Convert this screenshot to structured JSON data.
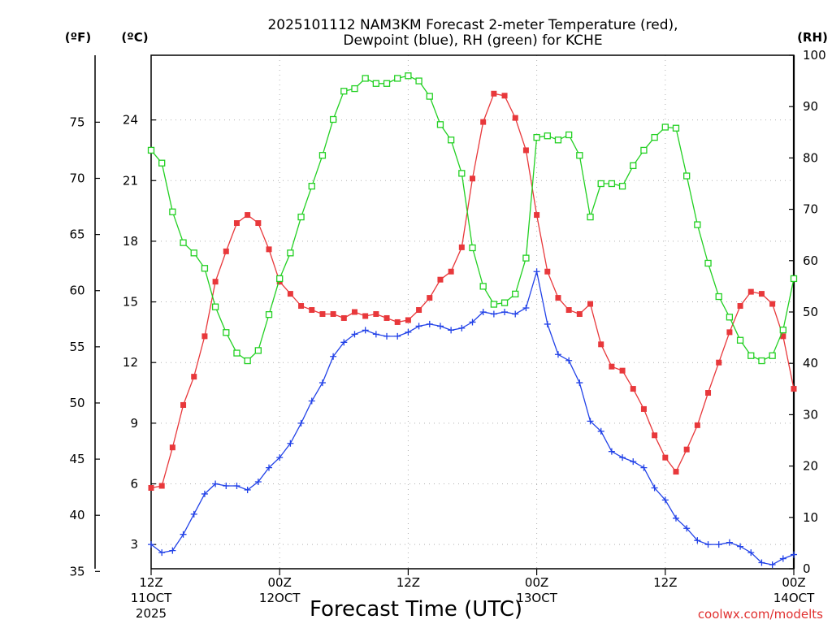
{
  "chart_data": {
    "type": "line",
    "title_line1": "2025101112 NAM3KM Forecast 2-meter Temperature (red),",
    "title_line2": "Dewpoint (blue), RH (green) for KCHE",
    "xlabel": "Forecast Time (UTC)",
    "credit": "coolwx.com/modelts",
    "units": {
      "fahrenheit": "(ºF)",
      "celsius": "(ºC)",
      "rh": "(RH)"
    },
    "x_range_hours": [
      0,
      60
    ],
    "celsius_range": [
      1.8,
      27.2
    ],
    "rh_range": [
      0,
      100
    ],
    "x_ticks": [
      {
        "hour": 0,
        "line1": "12Z",
        "line2": "11OCT",
        "line3": "2025"
      },
      {
        "hour": 12,
        "line1": "00Z",
        "line2": "12OCT",
        "line3": ""
      },
      {
        "hour": 24,
        "line1": "12Z",
        "line2": "",
        "line3": ""
      },
      {
        "hour": 36,
        "line1": "00Z",
        "line2": "13OCT",
        "line3": ""
      },
      {
        "hour": 48,
        "line1": "12Z",
        "line2": "",
        "line3": ""
      },
      {
        "hour": 60,
        "line1": "00Z",
        "line2": "14OCT",
        "line3": ""
      }
    ],
    "celsius_ticks": [
      3,
      6,
      9,
      12,
      15,
      18,
      21,
      24
    ],
    "fahrenheit_ticks": [
      35,
      40,
      45,
      50,
      55,
      60,
      65,
      70,
      75
    ],
    "rh_ticks": [
      0,
      10,
      20,
      30,
      40,
      50,
      60,
      70,
      80,
      90,
      100
    ],
    "colors": {
      "temperature": "#e8383b",
      "dewpoint": "#2242e8",
      "rh": "#22d022"
    },
    "series": [
      {
        "name": "Temperature (°C)",
        "axis": "celsius",
        "marker": "square",
        "values": [
          5.8,
          5.9,
          7.8,
          9.9,
          11.3,
          13.3,
          16.0,
          17.5,
          18.9,
          19.3,
          18.9,
          17.6,
          16.0,
          15.4,
          14.8,
          14.6,
          14.4,
          14.4,
          14.2,
          14.5,
          14.3,
          14.4,
          14.2,
          14.0,
          14.1,
          14.6,
          15.2,
          16.1,
          16.5,
          17.7,
          21.1,
          23.9,
          25.3,
          25.2,
          24.1,
          22.5,
          19.3,
          16.5,
          15.2,
          14.6,
          14.4,
          14.9,
          12.9,
          11.8,
          11.6,
          10.7,
          9.7,
          8.4,
          7.3,
          6.6,
          7.7,
          8.9,
          10.5,
          12.0,
          13.5,
          14.8,
          15.5,
          15.4,
          14.9,
          13.3,
          10.7
        ]
      },
      {
        "name": "Dewpoint (°C)",
        "axis": "celsius",
        "marker": "plus",
        "values": [
          3.0,
          2.6,
          2.7,
          3.5,
          4.5,
          5.5,
          6.0,
          5.9,
          5.9,
          5.7,
          6.1,
          6.8,
          7.3,
          8.0,
          9.0,
          10.1,
          11.0,
          12.3,
          13.0,
          13.4,
          13.6,
          13.4,
          13.3,
          13.3,
          13.5,
          13.8,
          13.9,
          13.8,
          13.6,
          13.7,
          14.0,
          14.5,
          14.4,
          14.5,
          14.4,
          14.7,
          16.5,
          13.9,
          12.4,
          12.1,
          11.0,
          9.1,
          8.6,
          7.6,
          7.3,
          7.1,
          6.8,
          5.8,
          5.2,
          4.3,
          3.8,
          3.2,
          3.0,
          3.0,
          3.1,
          2.9,
          2.6,
          2.1,
          2.0,
          2.3,
          2.5
        ]
      },
      {
        "name": "RH (%)",
        "axis": "rh",
        "marker": "open-square",
        "values": [
          81.5,
          79.0,
          69.5,
          63.5,
          61.5,
          58.5,
          51.0,
          46.0,
          42.0,
          40.5,
          42.5,
          49.5,
          56.5,
          61.5,
          68.5,
          74.5,
          80.5,
          87.5,
          93.0,
          93.5,
          95.5,
          94.5,
          94.5,
          95.5,
          96.0,
          95.0,
          92.0,
          86.5,
          83.5,
          77.0,
          62.5,
          55.0,
          51.5,
          51.8,
          53.5,
          60.5,
          84.0,
          84.3,
          83.5,
          84.5,
          80.5,
          68.5,
          75.0,
          75.0,
          74.5,
          78.5,
          81.5,
          84.0,
          86.0,
          85.8,
          76.5,
          67.0,
          59.5,
          53.0,
          49.0,
          44.5,
          41.5,
          40.5,
          41.5,
          46.5,
          56.5
        ]
      }
    ]
  }
}
